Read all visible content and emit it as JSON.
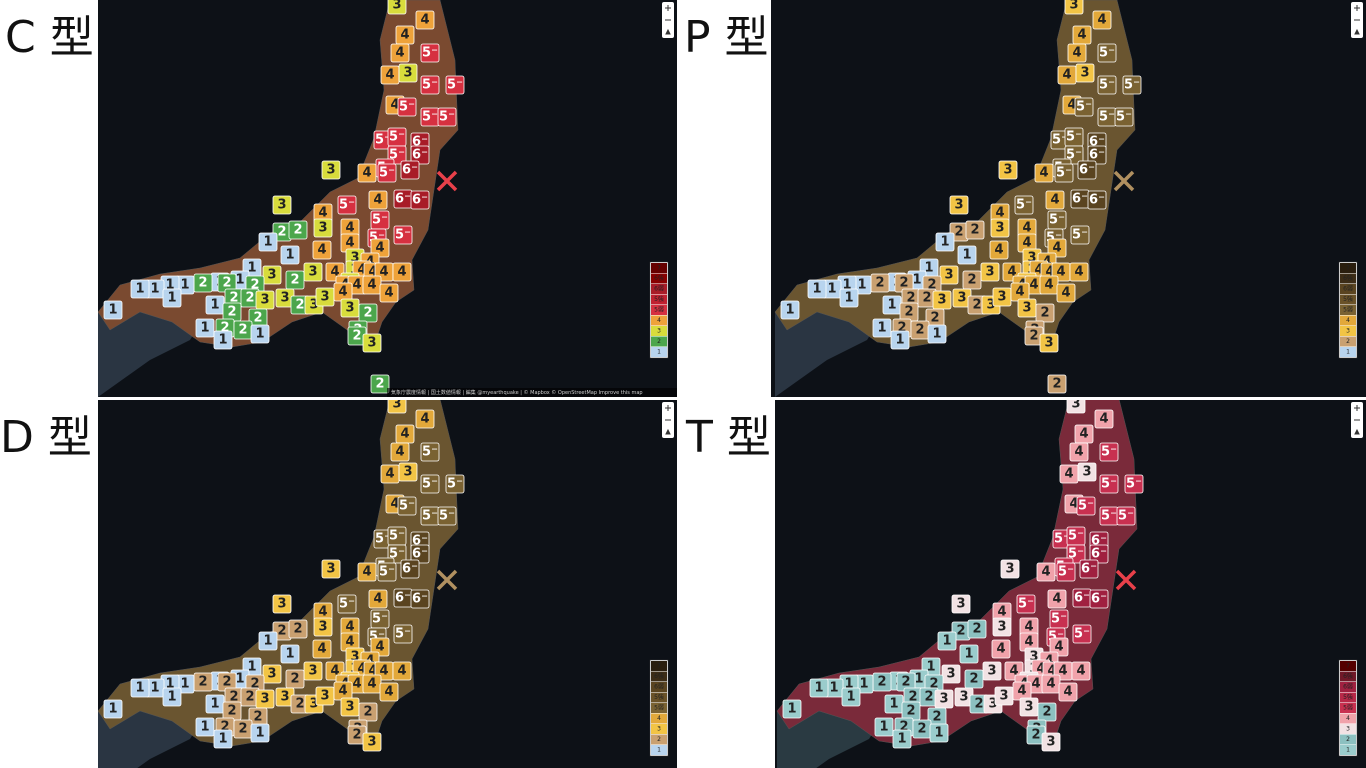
{
  "panels": [
    {
      "title": "C 型",
      "attribution": "気象庁震度情報 | 国土数値情報 | 編集 @myearthquake | © Mapbox © OpenStreetMap Improve this map",
      "legend": [
        "7",
        "6強",
        "6弱",
        "5強",
        "5弱",
        "4",
        "3",
        "2",
        "1"
      ],
      "markers": [
        "3",
        "4",
        "4",
        "5⁻",
        "4",
        "4",
        "3",
        "5⁻",
        "5⁻",
        "4",
        "5⁻",
        "5⁻",
        "5⁻",
        "5⁻",
        "5⁻",
        "6⁻",
        "5⁻",
        "6⁻",
        "5⁻",
        "6⁻",
        "3",
        "4",
        "5⁻",
        "6⁻",
        "6⁻",
        "5⁻",
        "4",
        "3",
        "4",
        "5⁻",
        "3",
        "4",
        "2",
        "2",
        "5⁻",
        "5⁻",
        "1",
        "4",
        "4",
        "4",
        "1",
        "3",
        "4",
        "1",
        "3",
        "4",
        "3",
        "4",
        "4",
        "4",
        "4",
        "3",
        "2",
        "3",
        "1",
        "1",
        "2",
        "1",
        "1",
        "1",
        "1",
        "1",
        "2",
        "2",
        "4",
        "4",
        "4",
        "2",
        "2",
        "3",
        "3",
        "2",
        "3",
        "3",
        "4",
        "4",
        "1",
        "2",
        "2",
        "3",
        "1",
        "2",
        "1",
        "2",
        "2",
        "1",
        "2",
        "1",
        "2",
        "3",
        "2"
      ]
    },
    {
      "title": "P 型",
      "legend": [
        "7",
        "6強",
        "6弱",
        "5強",
        "5弱",
        "4",
        "3",
        "2",
        "1"
      ],
      "markers": [
        "3",
        "4",
        "4",
        "5⁻",
        "4",
        "4",
        "3",
        "5⁻",
        "5⁻",
        "4",
        "5⁻",
        "5⁻",
        "5⁻",
        "5⁻",
        "5⁻",
        "6⁻",
        "5⁻",
        "6⁻",
        "5⁻",
        "6⁻",
        "3",
        "4",
        "5⁻",
        "6⁻",
        "6⁻",
        "5⁻",
        "4",
        "3",
        "4",
        "5⁻",
        "3",
        "4",
        "2",
        "2",
        "5⁻",
        "5⁻",
        "1",
        "4",
        "4",
        "4",
        "1",
        "3",
        "4",
        "1",
        "3",
        "4",
        "3",
        "4",
        "4",
        "4",
        "4",
        "3",
        "2",
        "3",
        "1",
        "1",
        "2",
        "1",
        "1",
        "1",
        "1",
        "1",
        "2",
        "2",
        "4",
        "4",
        "4",
        "2",
        "2",
        "3",
        "3",
        "2",
        "3",
        "3",
        "4",
        "4",
        "1",
        "2",
        "2",
        "3",
        "1",
        "2",
        "1",
        "2",
        "2",
        "1",
        "2",
        "1",
        "2",
        "3",
        "2"
      ]
    },
    {
      "title": "D 型",
      "legend": [
        "7",
        "6強",
        "6弱",
        "5強",
        "5弱",
        "4",
        "3",
        "2",
        "1"
      ],
      "markers": [
        "3",
        "4",
        "4",
        "5⁻",
        "4",
        "4",
        "3",
        "5⁻",
        "5⁻",
        "4",
        "5⁻",
        "5⁻",
        "5⁻",
        "5⁻",
        "5⁻",
        "6⁻",
        "5⁻",
        "6⁻",
        "5⁻",
        "6⁻",
        "3",
        "4",
        "5⁻",
        "6⁻",
        "6⁻",
        "5⁻",
        "4",
        "3",
        "4",
        "5⁻",
        "3",
        "4",
        "2",
        "2",
        "5⁻",
        "5⁻",
        "1",
        "4",
        "4",
        "4",
        "1",
        "3",
        "4",
        "1",
        "3",
        "4",
        "3",
        "4",
        "4",
        "4",
        "4",
        "3",
        "2",
        "3",
        "1",
        "1",
        "2",
        "1",
        "1",
        "1",
        "1",
        "1",
        "2",
        "2",
        "4",
        "4",
        "4",
        "2",
        "2",
        "3",
        "3",
        "2",
        "3",
        "3",
        "4",
        "4",
        "1",
        "2",
        "2",
        "3",
        "1",
        "2",
        "1",
        "2",
        "2",
        "1",
        "2",
        "1",
        "2",
        "3",
        "2"
      ]
    },
    {
      "title": "T 型",
      "legend": [
        "7",
        "6強",
        "6弱",
        "5強",
        "5弱",
        "4",
        "3",
        "2",
        "1"
      ],
      "markers": [
        "3",
        "4",
        "4",
        "5⁻",
        "4",
        "4",
        "3",
        "5⁻",
        "5⁻",
        "4",
        "5⁻",
        "5⁻",
        "5⁻",
        "5⁻",
        "5⁻",
        "6⁻",
        "5⁻",
        "6⁻",
        "5⁻",
        "6⁻",
        "3",
        "4",
        "5⁻",
        "6⁻",
        "6⁻",
        "5⁻",
        "4",
        "3",
        "4",
        "5⁻",
        "3",
        "4",
        "2",
        "2",
        "5⁻",
        "5⁻",
        "1",
        "4",
        "4",
        "4",
        "1",
        "3",
        "4",
        "1",
        "3",
        "4",
        "3",
        "4",
        "4",
        "4",
        "4",
        "3",
        "2",
        "3",
        "1",
        "1",
        "2",
        "1",
        "1",
        "1",
        "1",
        "1",
        "2",
        "2",
        "4",
        "4",
        "4",
        "2",
        "2",
        "3",
        "3",
        "2",
        "3",
        "3",
        "4",
        "4",
        "1",
        "2",
        "2",
        "3",
        "1",
        "2",
        "1",
        "2",
        "2",
        "1",
        "2",
        "1",
        "2",
        "3",
        "2"
      ]
    }
  ]
}
